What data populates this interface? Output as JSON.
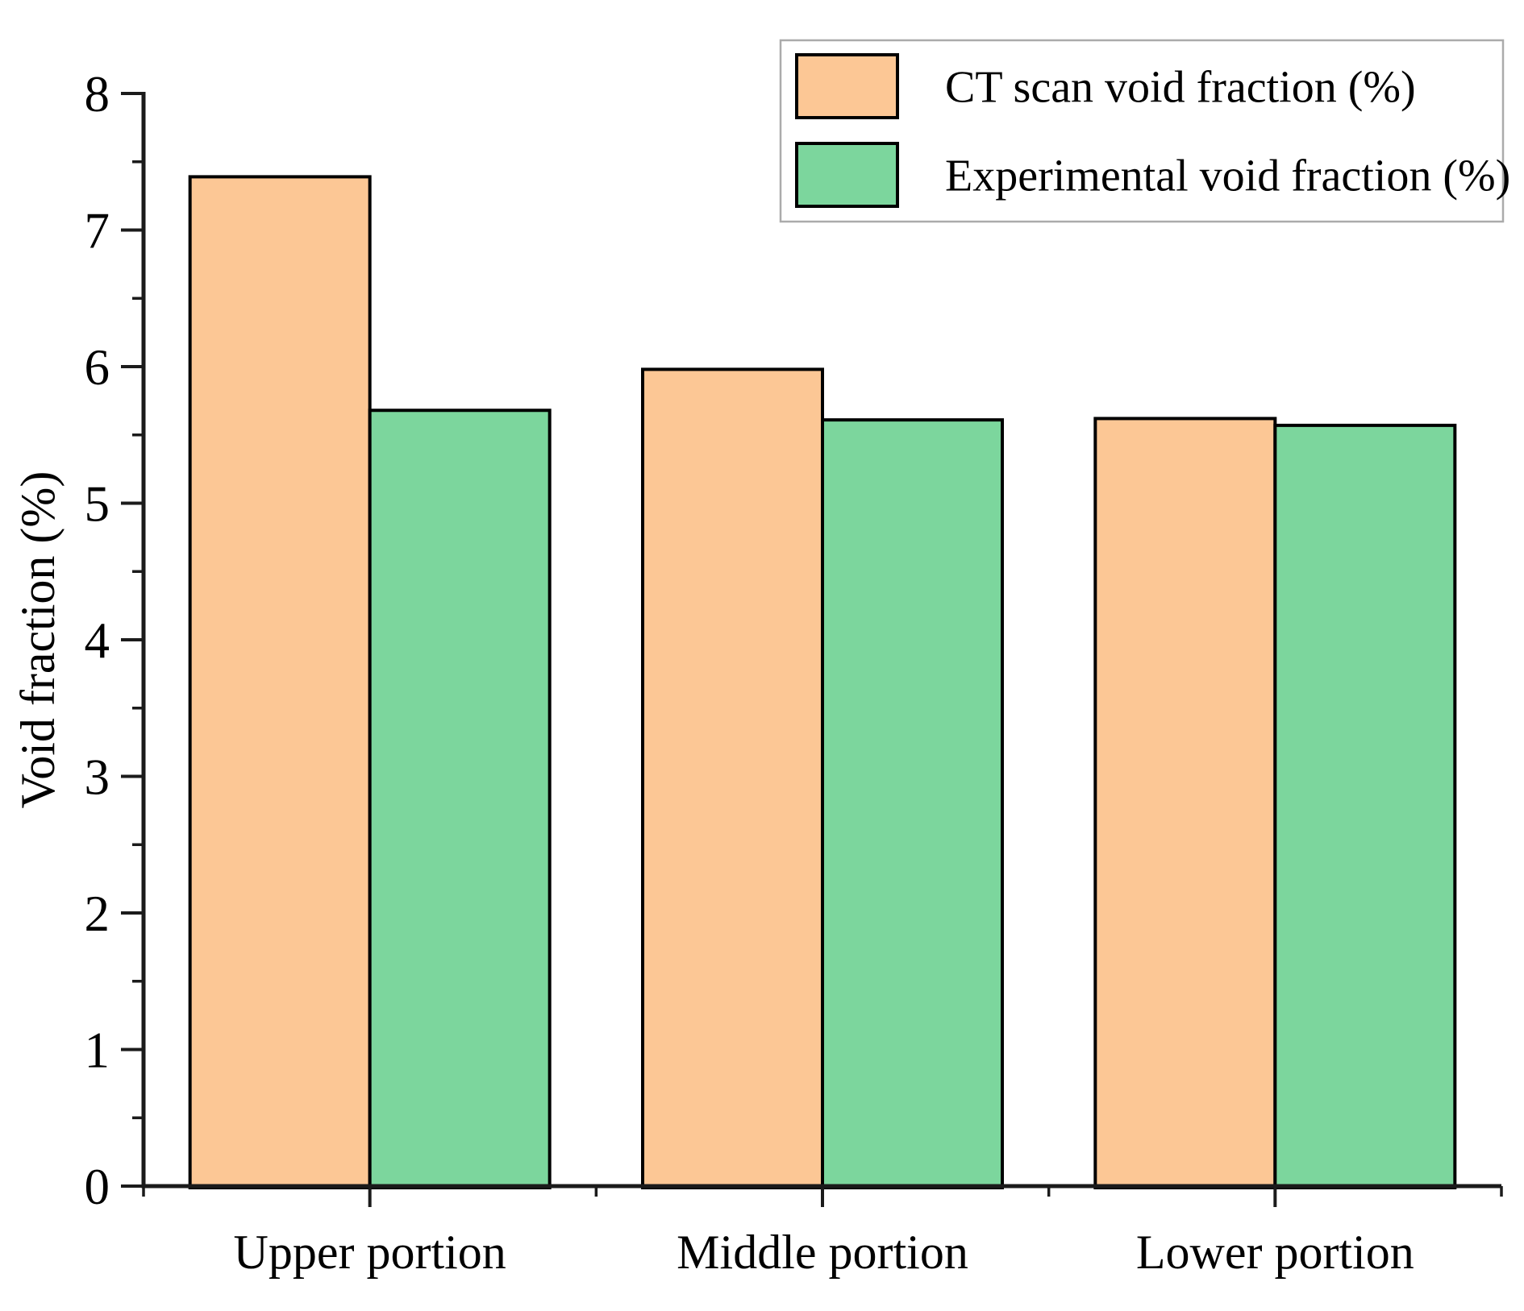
{
  "chart_data": {
    "type": "bar",
    "title": "",
    "categories": [
      "Upper portion",
      "Middle portion",
      "Lower portion"
    ],
    "series": [
      {
        "name": "CT scan void fraction (%)",
        "color": "#FCC795",
        "values": [
          7.39,
          5.98,
          5.62
        ]
      },
      {
        "name": "Experimental void fraction (%)",
        "color": "#7CD69D",
        "values": [
          5.68,
          5.61,
          5.57
        ]
      }
    ],
    "xlabel": "",
    "ylabel": "Void fraction (%)",
    "ylim": [
      0,
      8
    ],
    "ytick_step": 1,
    "yminor_step": 0.5,
    "ytick_labels": [
      "0",
      "1",
      "2",
      "3",
      "4",
      "5",
      "6",
      "7",
      "8"
    ],
    "grid": false,
    "bar_edge_color": "#000000",
    "axis_color": "#1b1b1b",
    "legend": {
      "position": "top-right",
      "background": "#ffffff",
      "border_color": "#ABABAB",
      "entries": [
        "CT scan void fraction (%)",
        "Experimental void fraction (%)"
      ]
    }
  }
}
